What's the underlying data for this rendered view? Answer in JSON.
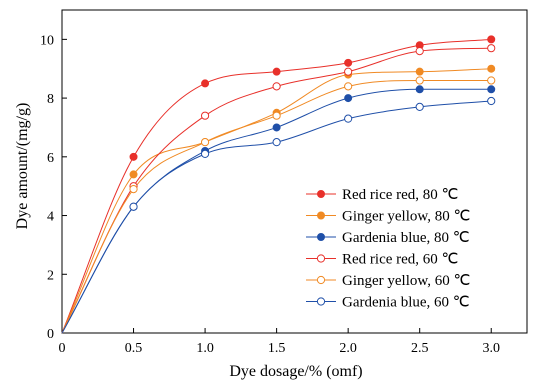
{
  "chart_data": {
    "type": "scatter",
    "title": "",
    "xlabel": "Dye dosage/% (omf)",
    "ylabel": "Dye amount/(mg/g)",
    "xlim": [
      0,
      3.25
    ],
    "ylim": [
      0,
      11
    ],
    "xticks": [
      "0",
      "0.5",
      "1.0",
      "1.5",
      "2.0",
      "2.5",
      "3.0"
    ],
    "xtick_values": [
      0,
      0.5,
      1.0,
      1.5,
      2.0,
      2.5,
      3.0
    ],
    "yticks": [
      "0",
      "2",
      "4",
      "6",
      "8",
      "10"
    ],
    "ytick_values": [
      0,
      2,
      4,
      6,
      8,
      10
    ],
    "grid": false,
    "legend_position": "bottom-right",
    "x": [
      0.5,
      1.0,
      1.5,
      2.0,
      2.5,
      3.0
    ],
    "series": [
      {
        "name": "Red rice red, 80 ℃",
        "color": "#e8302a",
        "marker": "filled",
        "values": [
          6.0,
          8.5,
          8.9,
          9.2,
          9.8,
          10.0
        ]
      },
      {
        "name": "Ginger yellow, 80 ℃",
        "color": "#f08a24",
        "marker": "filled",
        "values": [
          5.4,
          6.5,
          7.5,
          8.8,
          8.9,
          9.0
        ]
      },
      {
        "name": "Gardenia blue, 80 ℃",
        "color": "#1f4fa8",
        "marker": "filled",
        "values": [
          4.3,
          6.2,
          7.0,
          8.0,
          8.3,
          8.3
        ]
      },
      {
        "name": "Red rice red, 60 ℃",
        "color": "#e8302a",
        "marker": "hollow",
        "values": [
          5.0,
          7.4,
          8.4,
          8.9,
          9.6,
          9.7
        ]
      },
      {
        "name": "Ginger yellow, 60 ℃",
        "color": "#f08a24",
        "marker": "hollow",
        "values": [
          4.9,
          6.5,
          7.4,
          8.4,
          8.6,
          8.6
        ]
      },
      {
        "name": "Gardenia blue, 60 ℃",
        "color": "#1f4fa8",
        "marker": "hollow",
        "values": [
          4.3,
          6.1,
          6.5,
          7.3,
          7.7,
          7.9
        ]
      }
    ]
  }
}
